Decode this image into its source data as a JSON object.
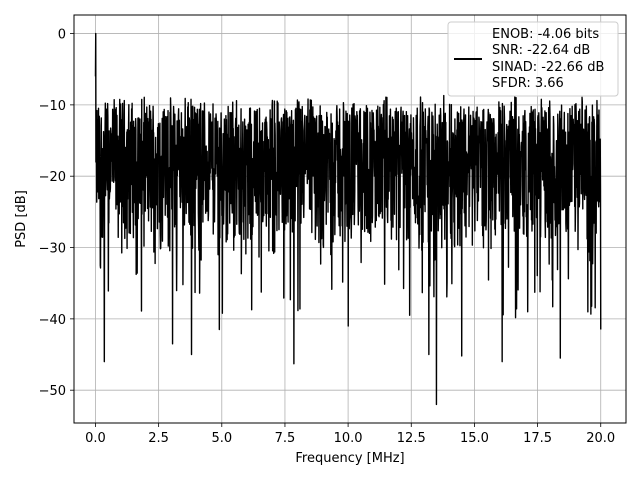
{
  "chart_data": {
    "type": "line",
    "title": "",
    "xlabel": "Frequency [MHz]",
    "ylabel": "PSD [dB]",
    "xlim": [
      -0.85,
      21.0
    ],
    "ylim": [
      -54.6,
      2.6
    ],
    "xticks": [
      0.0,
      2.5,
      5.0,
      7.5,
      10.0,
      12.5,
      15.0,
      17.5,
      20.0
    ],
    "xtick_labels": [
      "0.0",
      "2.5",
      "5.0",
      "7.5",
      "10.0",
      "12.5",
      "15.0",
      "17.5",
      "20.0"
    ],
    "yticks": [
      0,
      -10,
      -20,
      -30,
      -40,
      -50
    ],
    "ytick_labels": [
      "0",
      "−10",
      "−20",
      "−30",
      "−40",
      "−50"
    ],
    "grid": true,
    "legend_position": "top-right",
    "legend_lines": [
      "ENOB: -4.06 bits",
      "SNR: -22.64 dB",
      "SINAD: -22.66 dB",
      "SFDR: 3.66"
    ],
    "series": [
      {
        "color": "#000000",
        "x_range": [
          0.0,
          20.0
        ],
        "n_points": 2000,
        "envelope_top": -10,
        "envelope_bottom": -30,
        "peak": {
          "x": 0.02,
          "y": 0.0
        },
        "notable_minima": [
          {
            "x": 0.35,
            "y": -46.0
          },
          {
            "x": 3.05,
            "y": -43.5
          },
          {
            "x": 3.8,
            "y": -45.0
          },
          {
            "x": 4.9,
            "y": -41.5
          },
          {
            "x": 7.85,
            "y": -46.3
          },
          {
            "x": 10.0,
            "y": -41.0
          },
          {
            "x": 13.2,
            "y": -45.0
          },
          {
            "x": 13.5,
            "y": -52.0
          },
          {
            "x": 14.5,
            "y": -45.2
          },
          {
            "x": 16.1,
            "y": -46.0
          },
          {
            "x": 18.4,
            "y": -45.5
          },
          {
            "x": 20.0,
            "y": -41.5
          }
        ]
      }
    ]
  }
}
